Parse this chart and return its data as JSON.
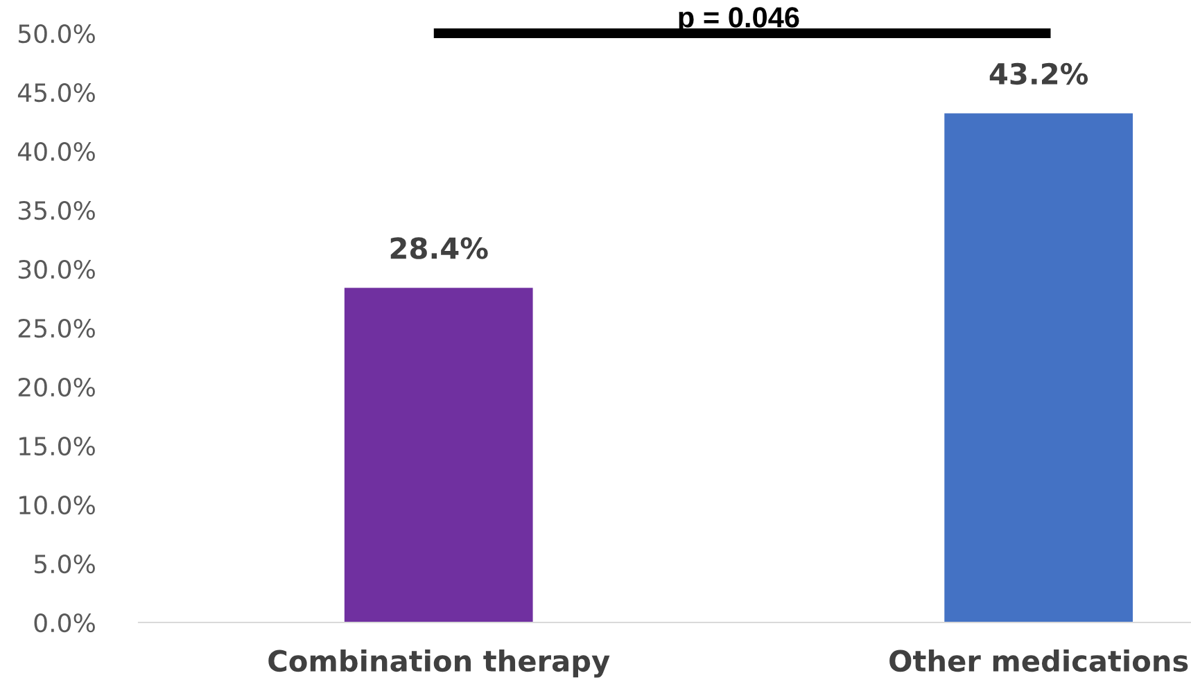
{
  "chart_data": {
    "type": "bar",
    "categories": [
      "Combination therapy",
      "Other medications"
    ],
    "values": [
      28.4,
      43.2
    ],
    "colors": [
      "#7030a0",
      "#4472c4"
    ],
    "value_labels": [
      "28.4%",
      "43.2%"
    ],
    "ylim": [
      0,
      50
    ],
    "yticks": [
      {
        "value": 0,
        "label": "0.0%"
      },
      {
        "value": 5,
        "label": "5.0%"
      },
      {
        "value": 10,
        "label": "10.0%"
      },
      {
        "value": 15,
        "label": "15.0%"
      },
      {
        "value": 20,
        "label": "20.0%"
      },
      {
        "value": 25,
        "label": "25.0%"
      },
      {
        "value": 30,
        "label": "30.0%"
      },
      {
        "value": 35,
        "label": "35.0%"
      },
      {
        "value": 40,
        "label": "40.0%"
      },
      {
        "value": 45,
        "label": "45.0%"
      },
      {
        "value": 50,
        "label": "50.0%"
      }
    ],
    "annotations": [
      "p = 0.046"
    ]
  }
}
